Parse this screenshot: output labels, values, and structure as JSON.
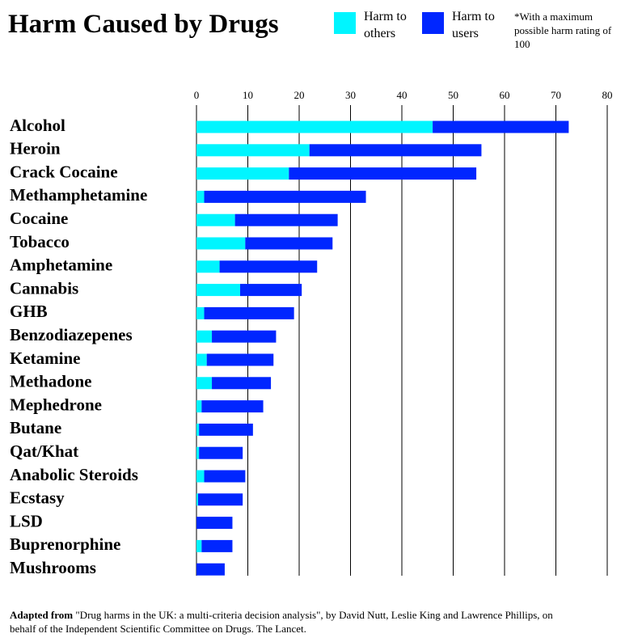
{
  "chart_data": {
    "type": "bar",
    "orientation": "horizontal",
    "stacked": true,
    "title": "Harm Caused by Drugs",
    "note": "*With a maximum possible harm rating of 100",
    "source": {
      "label": "Adapted from",
      "text": "\"Drug harms in the UK: a multi-criteria decision analysis\", by David Nutt, Leslie King and Lawrence Phillips, on behalf of the Independent Scientific Committee on Drugs. The Lancet."
    },
    "categories": [
      "Alcohol",
      "Heroin",
      "Crack Cocaine",
      "Methamphetamine",
      "Cocaine",
      "Tobacco",
      "Amphetamine",
      "Cannabis",
      "GHB",
      "Benzodiazepenes",
      "Ketamine",
      "Methadone",
      "Mephedrone",
      "Butane",
      "Qat/Khat",
      "Anabolic Steroids",
      "Ecstasy",
      "LSD",
      "Buprenorphine",
      "Mushrooms"
    ],
    "series": [
      {
        "name": "Harm to others",
        "color": "#00f5ff",
        "values": [
          46,
          22,
          18,
          1.5,
          7.5,
          9.5,
          4.5,
          8.5,
          1.5,
          3,
          2,
          3,
          1,
          0.5,
          0.5,
          1.5,
          0.3,
          0,
          1,
          0
        ]
      },
      {
        "name": "Harm to users",
        "color": "#0026ff",
        "values": [
          26.5,
          33.5,
          36.5,
          31.5,
          20,
          17,
          19,
          12,
          17.5,
          12.5,
          13,
          11.5,
          12,
          10.5,
          8.5,
          8,
          8.7,
          7,
          6,
          5.5
        ]
      }
    ],
    "xlim": [
      0,
      80
    ],
    "xticks": [
      0,
      10,
      20,
      30,
      40,
      50,
      60,
      70,
      80
    ],
    "grid": true
  }
}
